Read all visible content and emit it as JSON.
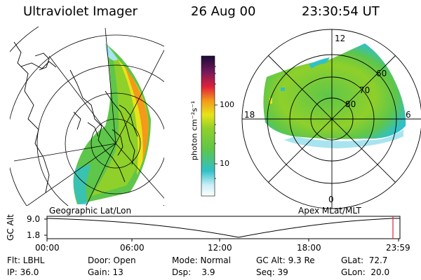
{
  "header": {
    "instrument": "Ultraviolet Imager",
    "date": "26 Aug 00",
    "time": "23:30:54 UT"
  },
  "colors": {
    "dark_purple": "#1b0a3a",
    "purple": "#7a1a5a",
    "red": "#e0203a",
    "orange": "#f39a1a",
    "yellow": "#e7e41a",
    "green": "#8fd02a",
    "green2": "#5ec64a",
    "cyan": "#30c0c8",
    "lightblue": "#a8e4f0",
    "white": "#ffffff"
  },
  "left_map": {
    "caption": "Geographic Lat/Lon"
  },
  "right_map": {
    "caption": "Apex MLat/MLT",
    "mlt_labels": {
      "top": "12",
      "left": "18",
      "right": "6",
      "bottom": "0"
    },
    "lat_labels": [
      "60",
      "70",
      "80"
    ]
  },
  "colorbar": {
    "unit": "photon cm⁻²s⁻¹",
    "ticks": [
      "100",
      "10"
    ]
  },
  "timeline": {
    "ylabel": "GC Alt",
    "yticks": [
      "9.0",
      "1.8"
    ],
    "xticks": [
      "00:00",
      "06:00",
      "12:00",
      "18:00",
      "23:59"
    ]
  },
  "status": {
    "row1": {
      "filter": "Flt: LBHL",
      "door": "Door: Open",
      "mode": "Mode: Normal",
      "gcalt": "GC Alt: 9.3 Re",
      "glat": "GLat:  72.7"
    },
    "row2": {
      "ip": "IP: 36.0",
      "gain": "Gain: 13",
      "dsp": "Dsp:    3.9",
      "seq": "Seq: 39",
      "glon": "GLon:  20.0"
    }
  }
}
